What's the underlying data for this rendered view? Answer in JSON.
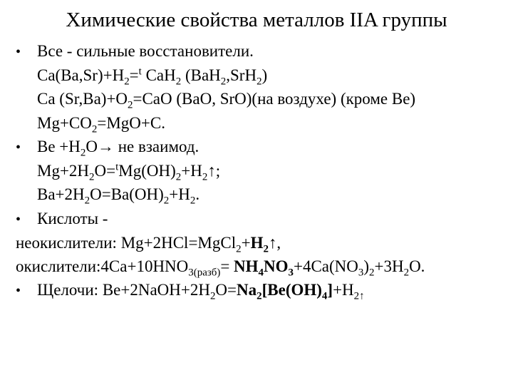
{
  "title": "Химические свойства металлов IIA группы",
  "lines": {
    "l1": "Все - сильные восстановители.",
    "l8": "Кислоты -",
    "neok_label": "неокислители:  ",
    "ok_label": "окислители:",
    "shch_label": "Щелочи:  "
  },
  "bullet": "•",
  "colors": {
    "text": "#000000",
    "background": "#ffffff"
  }
}
